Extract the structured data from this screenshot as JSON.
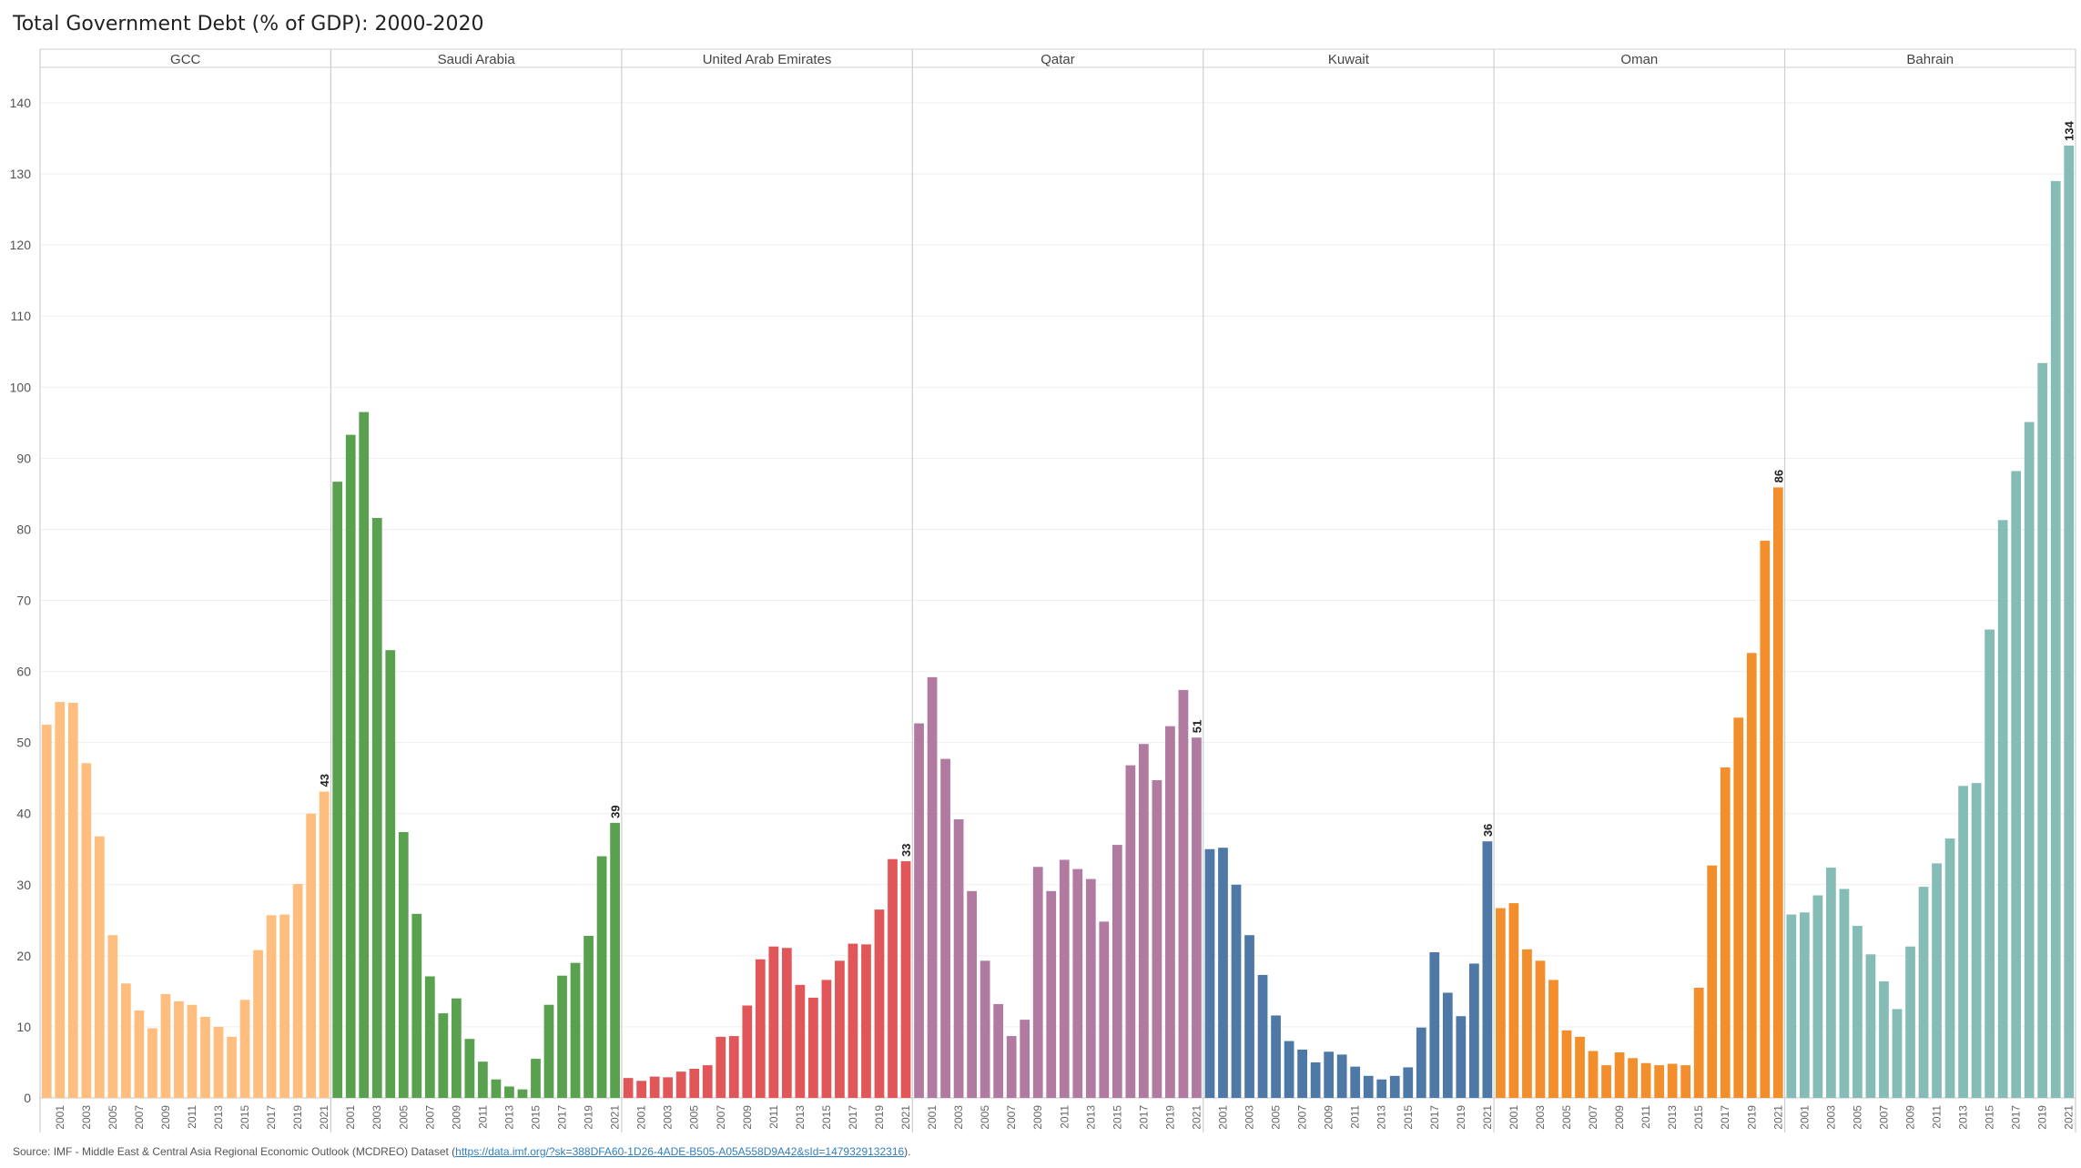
{
  "title": "Total Government Debt (% of GDP): 2000-2020",
  "source": {
    "prefix": "Source: IMF - Middle East & Central Asia Regional Economic Outlook (MCDREO) Dataset (",
    "link": "https://data.imf.org/?sk=388DFA60-1D26-4ADE-B505-A05A558D9A42&sId=1479329132316",
    "suffix": ")."
  },
  "chart_data": {
    "type": "bar",
    "x": [
      2000,
      2001,
      2002,
      2003,
      2004,
      2005,
      2006,
      2007,
      2008,
      2009,
      2010,
      2011,
      2012,
      2013,
      2014,
      2015,
      2016,
      2017,
      2018,
      2019,
      2020,
      2021
    ],
    "x_tick_labels": [
      "2001",
      "2003",
      "2005",
      "2007",
      "2009",
      "2011",
      "2013",
      "2015",
      "2017",
      "2019",
      "2021"
    ],
    "ylim": [
      0,
      145
    ],
    "yticks": [
      0,
      10,
      20,
      30,
      40,
      50,
      60,
      70,
      80,
      90,
      100,
      110,
      120,
      130,
      140
    ],
    "grid": true,
    "series": [
      {
        "name": "GCC",
        "color": "#ffbe7d",
        "values": [
          52.5,
          55.7,
          55.6,
          47.1,
          36.8,
          22.9,
          16.1,
          12.3,
          9.8,
          14.6,
          13.6,
          13.1,
          11.4,
          10.0,
          8.6,
          13.8,
          20.8,
          25.7,
          25.8,
          30.1,
          40.0,
          43.1
        ],
        "label": "43"
      },
      {
        "name": "Saudi Arabia",
        "color": "#59a14f",
        "values": [
          86.7,
          93.3,
          96.5,
          81.6,
          63.0,
          37.4,
          25.9,
          17.1,
          11.9,
          14.0,
          8.3,
          5.1,
          2.6,
          1.6,
          1.2,
          5.5,
          13.1,
          17.2,
          19.0,
          22.8,
          34.0,
          38.7
        ],
        "label": "39"
      },
      {
        "name": "United Arab Emirates",
        "color": "#e15759",
        "values": [
          2.8,
          2.4,
          3.0,
          2.9,
          3.7,
          4.1,
          4.6,
          8.6,
          8.7,
          13.0,
          19.5,
          21.3,
          21.1,
          15.9,
          14.1,
          16.6,
          19.3,
          21.7,
          21.6,
          26.5,
          33.6,
          33.3
        ],
        "label": "33"
      },
      {
        "name": "Qatar",
        "color": "#b07aa1",
        "values": [
          52.7,
          59.2,
          47.7,
          39.2,
          29.1,
          19.3,
          13.2,
          8.7,
          11.0,
          32.5,
          29.1,
          33.5,
          32.2,
          30.8,
          24.8,
          35.6,
          46.8,
          49.8,
          44.7,
          52.3,
          57.4,
          50.7
        ],
        "label": "51"
      },
      {
        "name": "Kuwait",
        "color": "#4e79a7",
        "values": [
          35.0,
          35.2,
          30.0,
          22.9,
          17.3,
          11.6,
          8.0,
          6.8,
          5.0,
          6.5,
          6.1,
          4.4,
          3.1,
          2.6,
          3.1,
          4.3,
          9.9,
          20.5,
          14.8,
          11.5,
          18.9,
          36.1
        ],
        "label": "36"
      },
      {
        "name": "Oman",
        "color": "#f28e2b",
        "values": [
          26.7,
          27.4,
          20.9,
          19.3,
          16.6,
          9.5,
          8.6,
          6.6,
          4.6,
          6.4,
          5.6,
          4.9,
          4.6,
          4.8,
          4.6,
          15.5,
          32.7,
          46.5,
          53.5,
          62.6,
          78.4,
          85.9
        ],
        "label": "86"
      },
      {
        "name": "Bahrain",
        "color": "#86bcb6",
        "values": [
          25.8,
          26.1,
          28.5,
          32.4,
          29.4,
          24.2,
          20.2,
          16.4,
          12.5,
          21.3,
          29.7,
          33.0,
          36.5,
          43.9,
          44.3,
          65.9,
          81.3,
          88.2,
          95.1,
          103.4,
          129.0,
          134.0
        ],
        "label": "134"
      }
    ]
  }
}
